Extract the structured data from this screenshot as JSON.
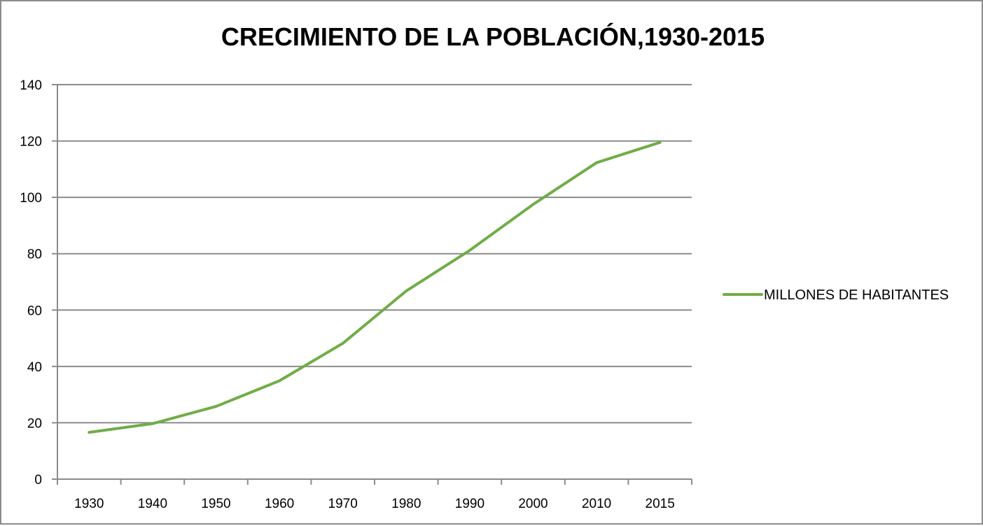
{
  "chart_data": {
    "type": "line",
    "title": "CRECIMIENTO DE LA POBLACIÓN,1930-2015",
    "xlabel": "",
    "ylabel": "",
    "categories": [
      "1930",
      "1940",
      "1950",
      "1960",
      "1970",
      "1980",
      "1990",
      "2000",
      "2010",
      "2015"
    ],
    "series": [
      {
        "name": "MILLONES DE HABITANTES",
        "color": "#70ad47",
        "values": [
          16.6,
          19.7,
          25.8,
          34.9,
          48.2,
          66.8,
          81.2,
          97.5,
          112.3,
          119.5
        ]
      }
    ],
    "ylim": [
      0,
      140
    ],
    "yticks": [
      0,
      20,
      40,
      60,
      80,
      100,
      120,
      140
    ],
    "grid": true,
    "legend_position": "right"
  }
}
